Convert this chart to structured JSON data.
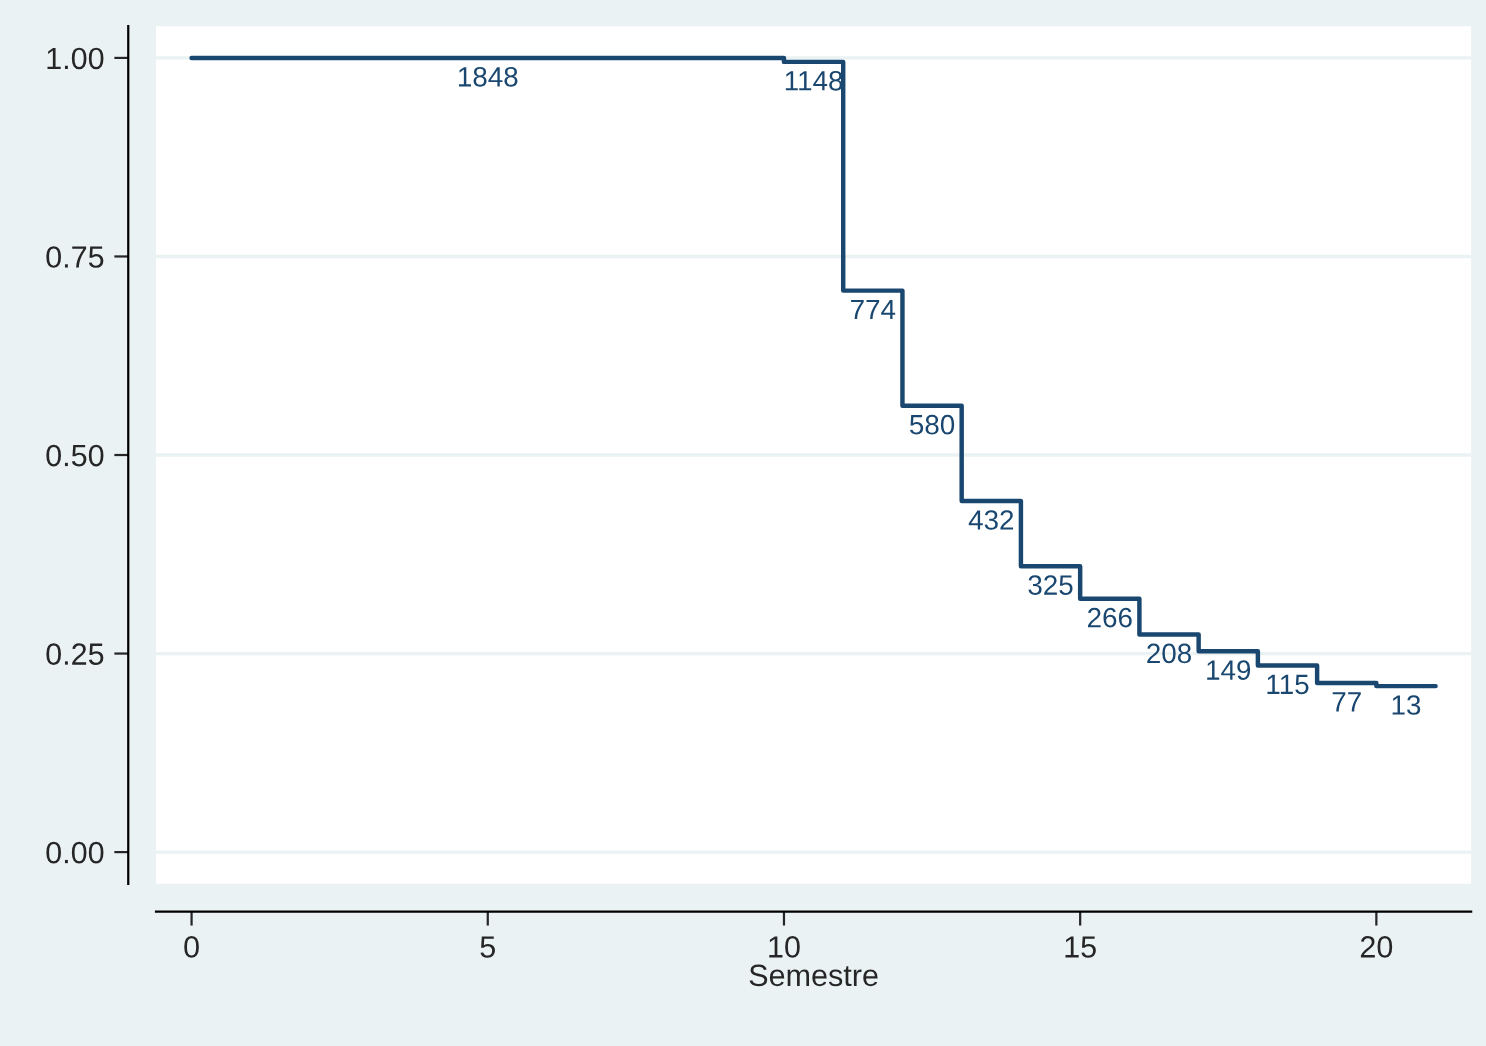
{
  "chart_data": {
    "type": "step",
    "xlabel": "Semestre",
    "xlim": [
      -0.6,
      21.6
    ],
    "xticks": [
      0,
      5,
      10,
      15,
      20
    ],
    "ylim": [
      -0.04,
      1.04
    ],
    "yticks": [
      {
        "value": 0,
        "label": "0.00"
      },
      {
        "value": 0.25,
        "label": "0.25"
      },
      {
        "value": 0.5,
        "label": "0.50"
      },
      {
        "value": 0.75,
        "label": "0.75"
      },
      {
        "value": 1,
        "label": "1.00"
      }
    ],
    "grid": "y",
    "legend": false,
    "annotations": [
      {
        "text": "1848",
        "x": 5,
        "y": 1.0
      },
      {
        "text": "1148",
        "x": 10.5,
        "y": 0.995
      },
      {
        "text": "774",
        "x": 11.5,
        "y": 0.707
      },
      {
        "text": "580",
        "x": 12.5,
        "y": 0.562
      },
      {
        "text": "432",
        "x": 13.5,
        "y": 0.442
      },
      {
        "text": "325",
        "x": 14.5,
        "y": 0.36
      },
      {
        "text": "266",
        "x": 15.5,
        "y": 0.319
      },
      {
        "text": "208",
        "x": 16.5,
        "y": 0.274
      },
      {
        "text": "149",
        "x": 17.5,
        "y": 0.253
      },
      {
        "text": "115",
        "x": 18.5,
        "y": 0.235
      },
      {
        "text": "77",
        "x": 19.5,
        "y": 0.213
      },
      {
        "text": "13",
        "x": 20.5,
        "y": 0.209
      }
    ],
    "series": [
      {
        "color": "#1a476f",
        "x": [
          0,
          10,
          11,
          12,
          13,
          14,
          15,
          16,
          17,
          18,
          19,
          20,
          21
        ],
        "values": [
          1.0,
          0.995,
          0.707,
          0.562,
          0.442,
          0.36,
          0.319,
          0.274,
          0.253,
          0.235,
          0.213,
          0.209,
          0.209
        ]
      }
    ]
  }
}
